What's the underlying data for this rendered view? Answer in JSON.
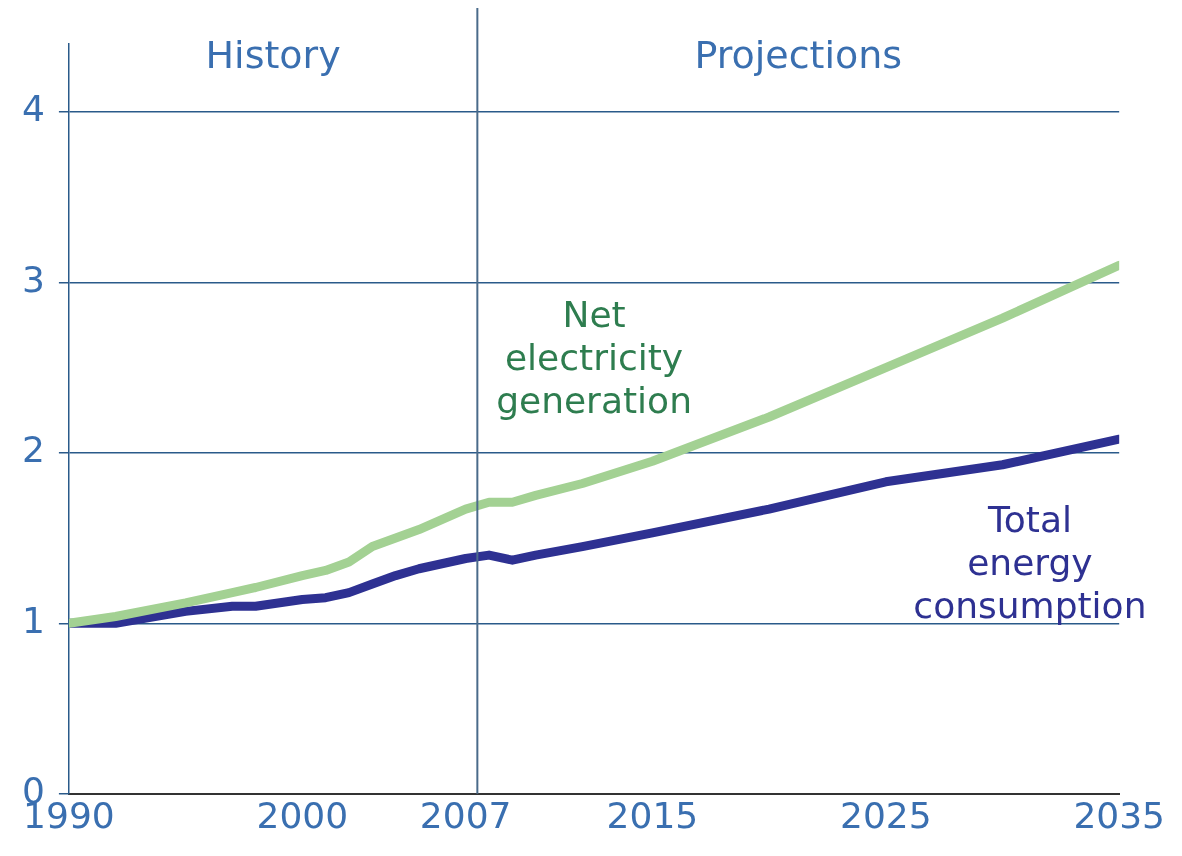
{
  "chart_data": {
    "type": "line",
    "x": [
      1990,
      1992,
      1995,
      1997,
      1998,
      2000,
      2001,
      2002,
      2003,
      2004,
      2005,
      2007,
      2008,
      2009,
      2010,
      2012,
      2015,
      2020,
      2025,
      2030,
      2035
    ],
    "series": [
      {
        "name": "Net electricity generation",
        "color": "#a3d193",
        "values": [
          1.0,
          1.04,
          1.12,
          1.18,
          1.21,
          1.28,
          1.31,
          1.36,
          1.45,
          1.5,
          1.55,
          1.67,
          1.71,
          1.71,
          1.75,
          1.82,
          1.95,
          2.21,
          2.5,
          2.79,
          3.1
        ]
      },
      {
        "name": "Total energy consumption",
        "color": "#2e3192",
        "values": [
          1.0,
          1.0,
          1.07,
          1.1,
          1.1,
          1.14,
          1.15,
          1.18,
          1.23,
          1.28,
          1.32,
          1.38,
          1.4,
          1.37,
          1.4,
          1.45,
          1.53,
          1.67,
          1.83,
          1.93,
          2.08
        ]
      }
    ],
    "xlim": [
      1990,
      2035
    ],
    "xticks": [
      1990,
      2000,
      2007,
      2015,
      2025,
      2035
    ],
    "ylim": [
      0,
      4.4
    ],
    "yticks": [
      0,
      1,
      2,
      3,
      4
    ],
    "grid": "y",
    "legend": false,
    "marker": "none",
    "line_style": "solid",
    "ref_lines": [
      {
        "axis": "x",
        "value": 2007.5,
        "color": "#4a6b8a"
      }
    ],
    "annotations": [
      "History",
      "Projections"
    ]
  }
}
